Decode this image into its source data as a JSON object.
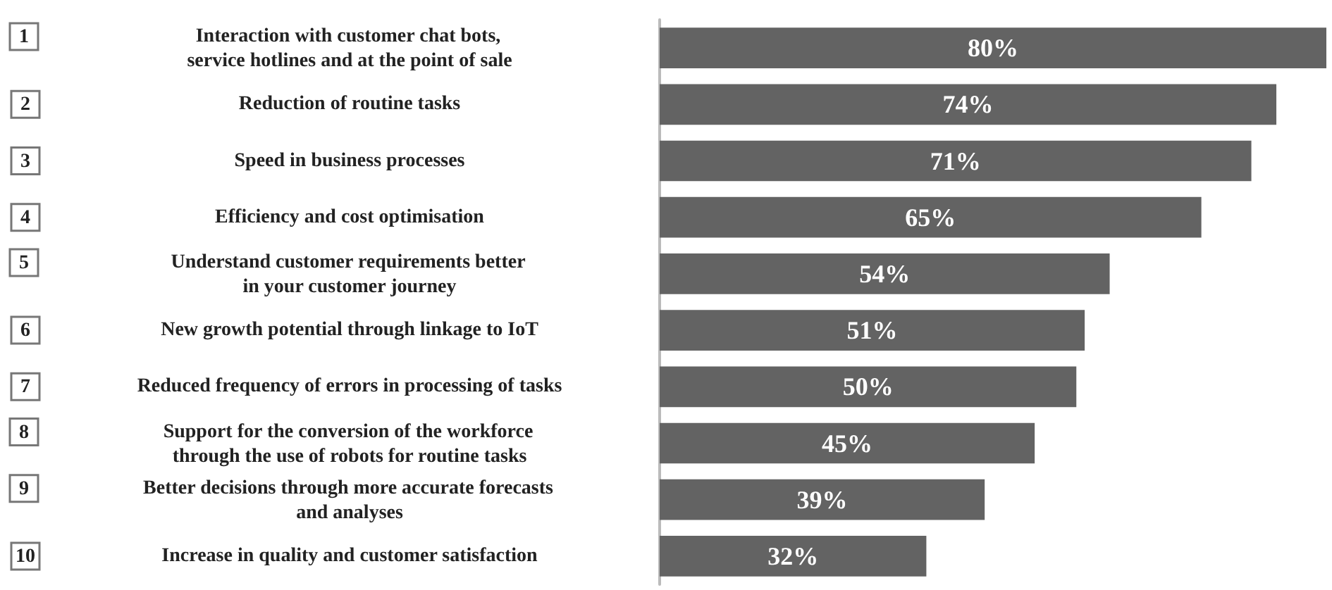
{
  "chart_data": {
    "type": "bar",
    "orientation": "horizontal",
    "categories": [
      "1 Interaction with customer chat bots,\nservice hotlines and at the point of sale",
      "2 Reduction of routine tasks",
      "3 Speed in business processes",
      "4 Efficiency and cost optimisation",
      "5 Understand customer requirements better\nin your customer journey",
      "6 New growth potential through linkage to IoT",
      "7 Reduced frequency of errors in processing of tasks",
      "8 Support for the conversion of the workforce\nthrough the use of robots for routine tasks",
      "9 Better decisions through more accurate forecasts\nand analyses",
      "10 Increase in quality and customer satisfaction"
    ],
    "values": [
      80,
      74,
      71,
      65,
      54,
      51,
      50,
      45,
      39,
      32
    ],
    "value_labels": [
      "80%",
      "74%",
      "71%",
      "65%",
      "54%",
      "51%",
      "50%",
      "45%",
      "39%",
      "32%"
    ],
    "color": "#636363"
  }
}
